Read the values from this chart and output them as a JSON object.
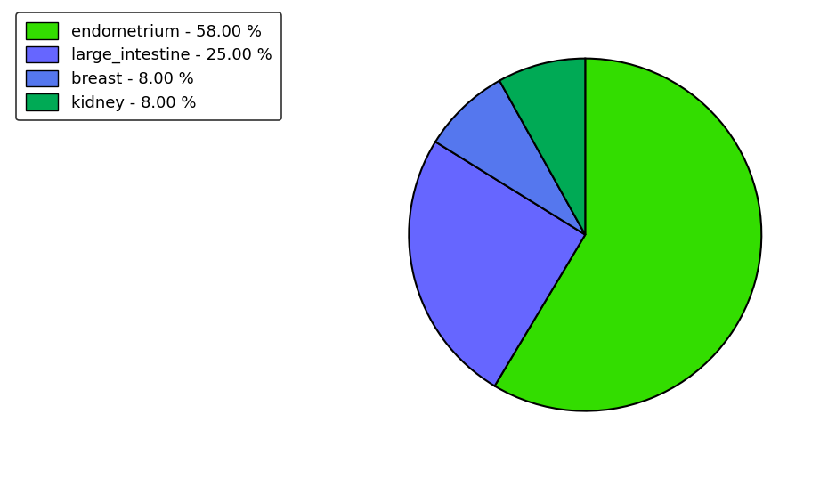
{
  "labels": [
    "endometrium",
    "large_intestine",
    "breast",
    "kidney"
  ],
  "values": [
    58,
    25,
    8,
    8
  ],
  "colors": [
    "#33dd00",
    "#6666ff",
    "#5577ee",
    "#00aa55"
  ],
  "legend_labels": [
    "endometrium - 58.00 %",
    "large_intestine - 25.00 %",
    "breast - 8.00 %",
    "kidney - 8.00 %"
  ],
  "startangle": 90,
  "background_color": "#ffffff"
}
